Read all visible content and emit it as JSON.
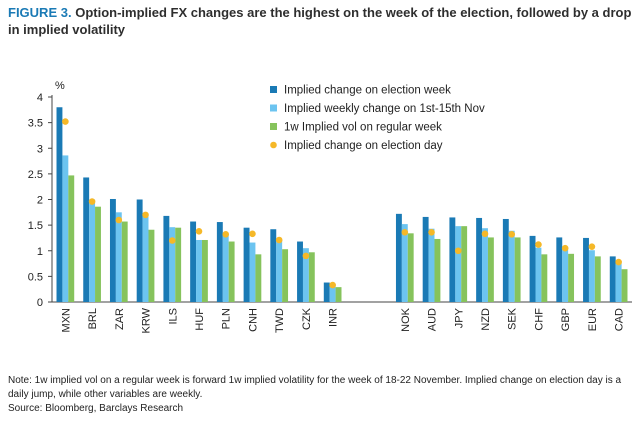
{
  "title": {
    "label": "FIGURE 3.",
    "text": "Option-implied FX changes are the highest on the week of the election, followed by a drop in implied volatility"
  },
  "note": "Note: 1w implied vol on a regular week is forward 1w implied volatility for the week of 18-22 November. Implied change on election day is a daily jump, while other variables are weekly.",
  "source": "Source: Bloomberg, Barclays Research",
  "chart_data": {
    "type": "bar",
    "ylabel": "%",
    "ylim": [
      0,
      4
    ],
    "yticks": [
      "0",
      "0.5",
      "1",
      "1.5",
      "2",
      "2.5",
      "3",
      "3.5",
      "4"
    ],
    "groups": [
      [
        "MXN",
        "BRL",
        "ZAR",
        "KRW",
        "ILS",
        "HUF",
        "PLN",
        "CNH",
        "TWD",
        "CZK",
        "INR"
      ],
      [
        "NOK",
        "AUD",
        "JPY",
        "NZD",
        "SEK",
        "CHF",
        "GBP",
        "EUR",
        "CAD"
      ]
    ],
    "categories": [
      "MXN",
      "BRL",
      "ZAR",
      "KRW",
      "ILS",
      "HUF",
      "PLN",
      "CNH",
      "TWD",
      "CZK",
      "INR",
      "NOK",
      "AUD",
      "JPY",
      "NZD",
      "SEK",
      "CHF",
      "GBP",
      "EUR",
      "CAD"
    ],
    "series": [
      {
        "name": "Implied change on election week",
        "color": "#1a7ab5",
        "kind": "bar",
        "values": [
          3.8,
          2.43,
          2.01,
          2.0,
          1.68,
          1.57,
          1.56,
          1.45,
          1.42,
          1.18,
          0.38,
          1.72,
          1.66,
          1.65,
          1.64,
          1.62,
          1.29,
          1.26,
          1.25,
          0.89
        ]
      },
      {
        "name": "Implied weekly change on 1st-15th Nov",
        "color": "#6cc4f0",
        "kind": "bar",
        "values": [
          2.86,
          2.0,
          1.75,
          1.67,
          1.46,
          1.21,
          1.33,
          1.16,
          1.22,
          1.05,
          0.32,
          1.52,
          1.43,
          1.48,
          1.44,
          1.39,
          1.06,
          1.02,
          1.01,
          0.79
        ]
      },
      {
        "name": "1w Implied vol on regular week",
        "color": "#86c35c",
        "kind": "bar",
        "values": [
          2.47,
          1.86,
          1.57,
          1.41,
          1.45,
          1.21,
          1.18,
          0.93,
          1.03,
          0.97,
          0.29,
          1.34,
          1.23,
          1.48,
          1.26,
          1.26,
          0.93,
          0.94,
          0.89,
          0.64
        ]
      },
      {
        "name": "Implied change on election day",
        "color": "#f5b828",
        "kind": "point",
        "values": [
          3.52,
          1.96,
          1.6,
          1.7,
          1.2,
          1.38,
          1.32,
          1.33,
          1.21,
          0.9,
          0.33,
          1.36,
          1.36,
          1.0,
          1.33,
          1.32,
          1.12,
          1.05,
          1.08,
          0.78
        ]
      }
    ],
    "legend_position": "top-right",
    "grid": false
  }
}
